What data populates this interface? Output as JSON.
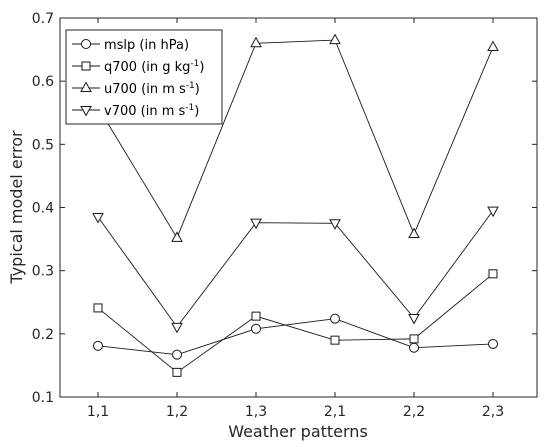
{
  "chart_data": {
    "type": "line",
    "xlabel": "Weather patterns",
    "ylabel": "Typical model error",
    "categories": [
      "1,1",
      "1,2",
      "1,3",
      "2,1",
      "2,2",
      "2,3"
    ],
    "ylim": [
      0.1,
      0.7
    ],
    "yticks": [
      0.1,
      0.2,
      0.3,
      0.4,
      0.5,
      0.6,
      0.7
    ],
    "yticklabels": [
      "0.1",
      "0.2",
      "0.3",
      "0.4",
      "0.5",
      "0.6",
      "0.7"
    ],
    "grid": false,
    "legend_position": "top-left",
    "line_color": "#1a1a1a",
    "series": [
      {
        "name": "mslp (in hPa)",
        "name_main": "mslp (in hPa)",
        "name_sup": "",
        "name_tail": "",
        "marker": "circle",
        "values": [
          0.181,
          0.167,
          0.208,
          0.224,
          0.178,
          0.184
        ]
      },
      {
        "name": "q700 (in g kg-1)",
        "name_main": "q700 (in g kg",
        "name_sup": "-1",
        "name_tail": ")",
        "marker": "square",
        "values": [
          0.241,
          0.139,
          0.228,
          0.19,
          0.192,
          0.295
        ]
      },
      {
        "name": "u700 (in m s-1)",
        "name_main": "u700 (in m s",
        "name_sup": "-1",
        "name_tail": ")",
        "marker": "triangle-up",
        "values": [
          0.559,
          0.352,
          0.66,
          0.665,
          0.358,
          0.654
        ]
      },
      {
        "name": "v700 (in m s-1)",
        "name_main": "v700 (in m s",
        "name_sup": "-1",
        "name_tail": ")",
        "marker": "triangle-down",
        "values": [
          0.385,
          0.211,
          0.376,
          0.375,
          0.225,
          0.395
        ]
      }
    ]
  }
}
